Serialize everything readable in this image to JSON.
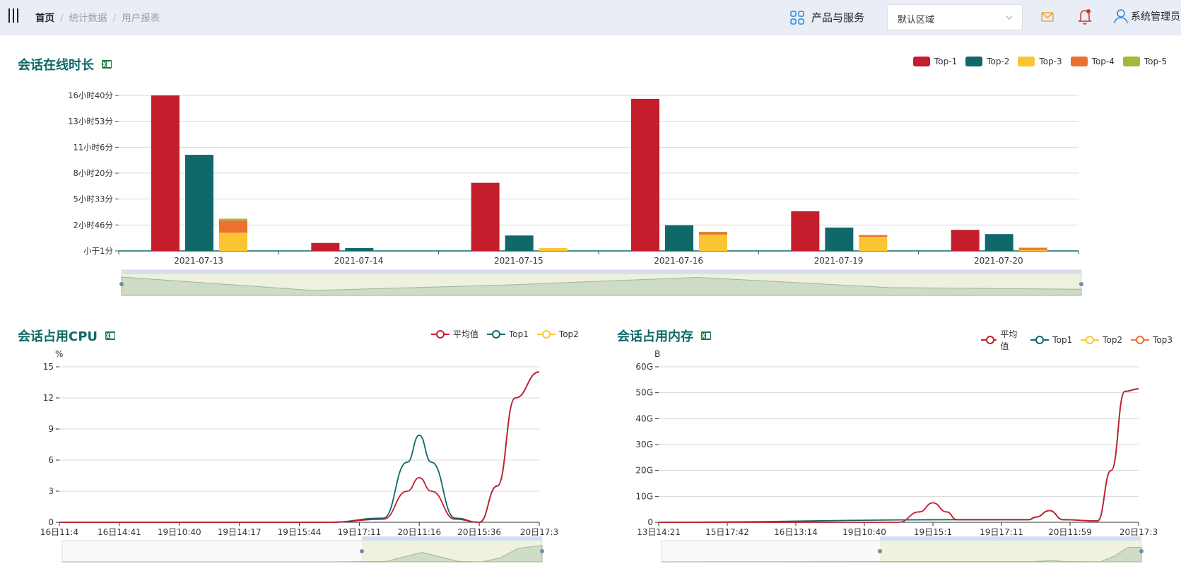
{
  "breadcrumb": [
    "首页",
    "统计数据",
    "用户报表"
  ],
  "header": {
    "products_label": "产品与服务",
    "region_value": "默认区域",
    "user_label": "系统管理员"
  },
  "colors": {
    "accent": "#0f6869",
    "top1": "#c41e2c",
    "top2": "#0f6869",
    "top3": "#fbc531",
    "top4": "#ee7030",
    "top5": "#a4b83a"
  },
  "sections": {
    "duration_title": "会话在线时长",
    "cpu_title": "会话占用CPU",
    "mem_title": "会话占用内存"
  },
  "chart_data": [
    {
      "type": "bar",
      "title": "会话在线时长",
      "categories": [
        "2021-07-13",
        "2021-07-14",
        "2021-07-15",
        "2021-07-16",
        "2021-07-19",
        "2021-07-20"
      ],
      "y_ticks": [
        "小于1分",
        "2小时46分",
        "5小时33分",
        "8小时20分",
        "11小时6分",
        "13小时53分",
        "16小时40分"
      ],
      "ylim_hours": [
        0,
        16.67
      ],
      "stacked_by": "legend order Top-1 and Top-2 grouped; Top-3..Top-5 stacked",
      "series": [
        {
          "name": "Top-1",
          "values_hours": [
            16.67,
            0.85,
            7.3,
            16.3,
            4.25,
            2.25
          ]
        },
        {
          "name": "Top-2",
          "values_hours": [
            10.3,
            0.3,
            1.65,
            2.75,
            2.5,
            1.8
          ]
        },
        {
          "name": "Top-3",
          "values_hours": [
            1.95,
            0,
            0.3,
            1.75,
            1.5,
            0.1
          ]
        },
        {
          "name": "Top-4",
          "values_hours": [
            1.3,
            0,
            0,
            0.25,
            0.2,
            0.2
          ]
        },
        {
          "name": "Top-5",
          "values_hours": [
            0.2,
            0,
            0,
            0.05,
            0,
            0.05
          ]
        }
      ],
      "legend": [
        "Top-1",
        "Top-2",
        "Top-3",
        "Top-4",
        "Top-5"
      ],
      "legend_position": "top-right",
      "grid": true
    },
    {
      "type": "line",
      "title": "会话占用CPU",
      "ylabel": "%",
      "ylim": [
        0,
        15
      ],
      "y_ticks": [
        "0",
        "3",
        "6",
        "9",
        "12",
        "15"
      ],
      "x_ticks": [
        "16日11:4",
        "16日14:41",
        "19日10:40",
        "19日14:17",
        "19日15:44",
        "19日17:11",
        "20日11:16",
        "20日15:36",
        "20日17:3"
      ],
      "legend": [
        "平均值",
        "Top1",
        "Top2"
      ],
      "legend_position": "top-right",
      "series": [
        {
          "name": "平均值",
          "x": [
            0,
            4.5,
            5.4,
            5.8,
            6.0,
            6.2,
            6.6,
            7.0,
            7.3,
            7.6,
            8.0
          ],
          "y": [
            0,
            0,
            0.3,
            3.0,
            4.3,
            3.0,
            0.3,
            0,
            3.5,
            12.0,
            14.5
          ]
        },
        {
          "name": "Top1",
          "x": [
            0,
            4.5,
            5.4,
            5.8,
            6.0,
            6.2,
            6.6,
            7.0,
            7.3,
            7.6,
            8.0
          ],
          "y": [
            0,
            0,
            0.4,
            5.8,
            8.4,
            5.8,
            0.4,
            0,
            3.5,
            12.0,
            14.5
          ]
        }
      ]
    },
    {
      "type": "line",
      "title": "会话占用内存",
      "ylabel": "B",
      "ylim": [
        0,
        60
      ],
      "y_ticks": [
        "0",
        "10G",
        "20G",
        "30G",
        "40G",
        "50G",
        "60G"
      ],
      "x_ticks": [
        "13日14:21",
        "15日17:42",
        "16日13:14",
        "19日10:40",
        "19日15:1",
        "19日17:11",
        "20日11:59",
        "20日17:3"
      ],
      "legend": [
        "平均值",
        "Top1",
        "Top2",
        "Top3"
      ],
      "legend_position": "top-right",
      "series": [
        {
          "name": "平均值",
          "x": [
            0,
            3.5,
            3.8,
            4.0,
            4.2,
            4.35,
            5.4,
            5.5,
            5.7,
            5.9,
            6.4,
            6.6,
            6.8,
            7.0
          ],
          "y": [
            0,
            0,
            4.0,
            7.5,
            4.0,
            1.0,
            1.0,
            2.0,
            4.5,
            1.0,
            0.5,
            20.0,
            50.5,
            51.5
          ]
        },
        {
          "name": "Top1",
          "x": [
            0,
            4.35,
            5.4,
            5.5,
            5.7,
            5.9,
            6.4,
            6.6,
            6.8,
            7.0
          ],
          "y": [
            0,
            1.0,
            1.0,
            2.0,
            4.5,
            1.0,
            0.5,
            20.0,
            50.5,
            51.5
          ]
        }
      ]
    }
  ]
}
